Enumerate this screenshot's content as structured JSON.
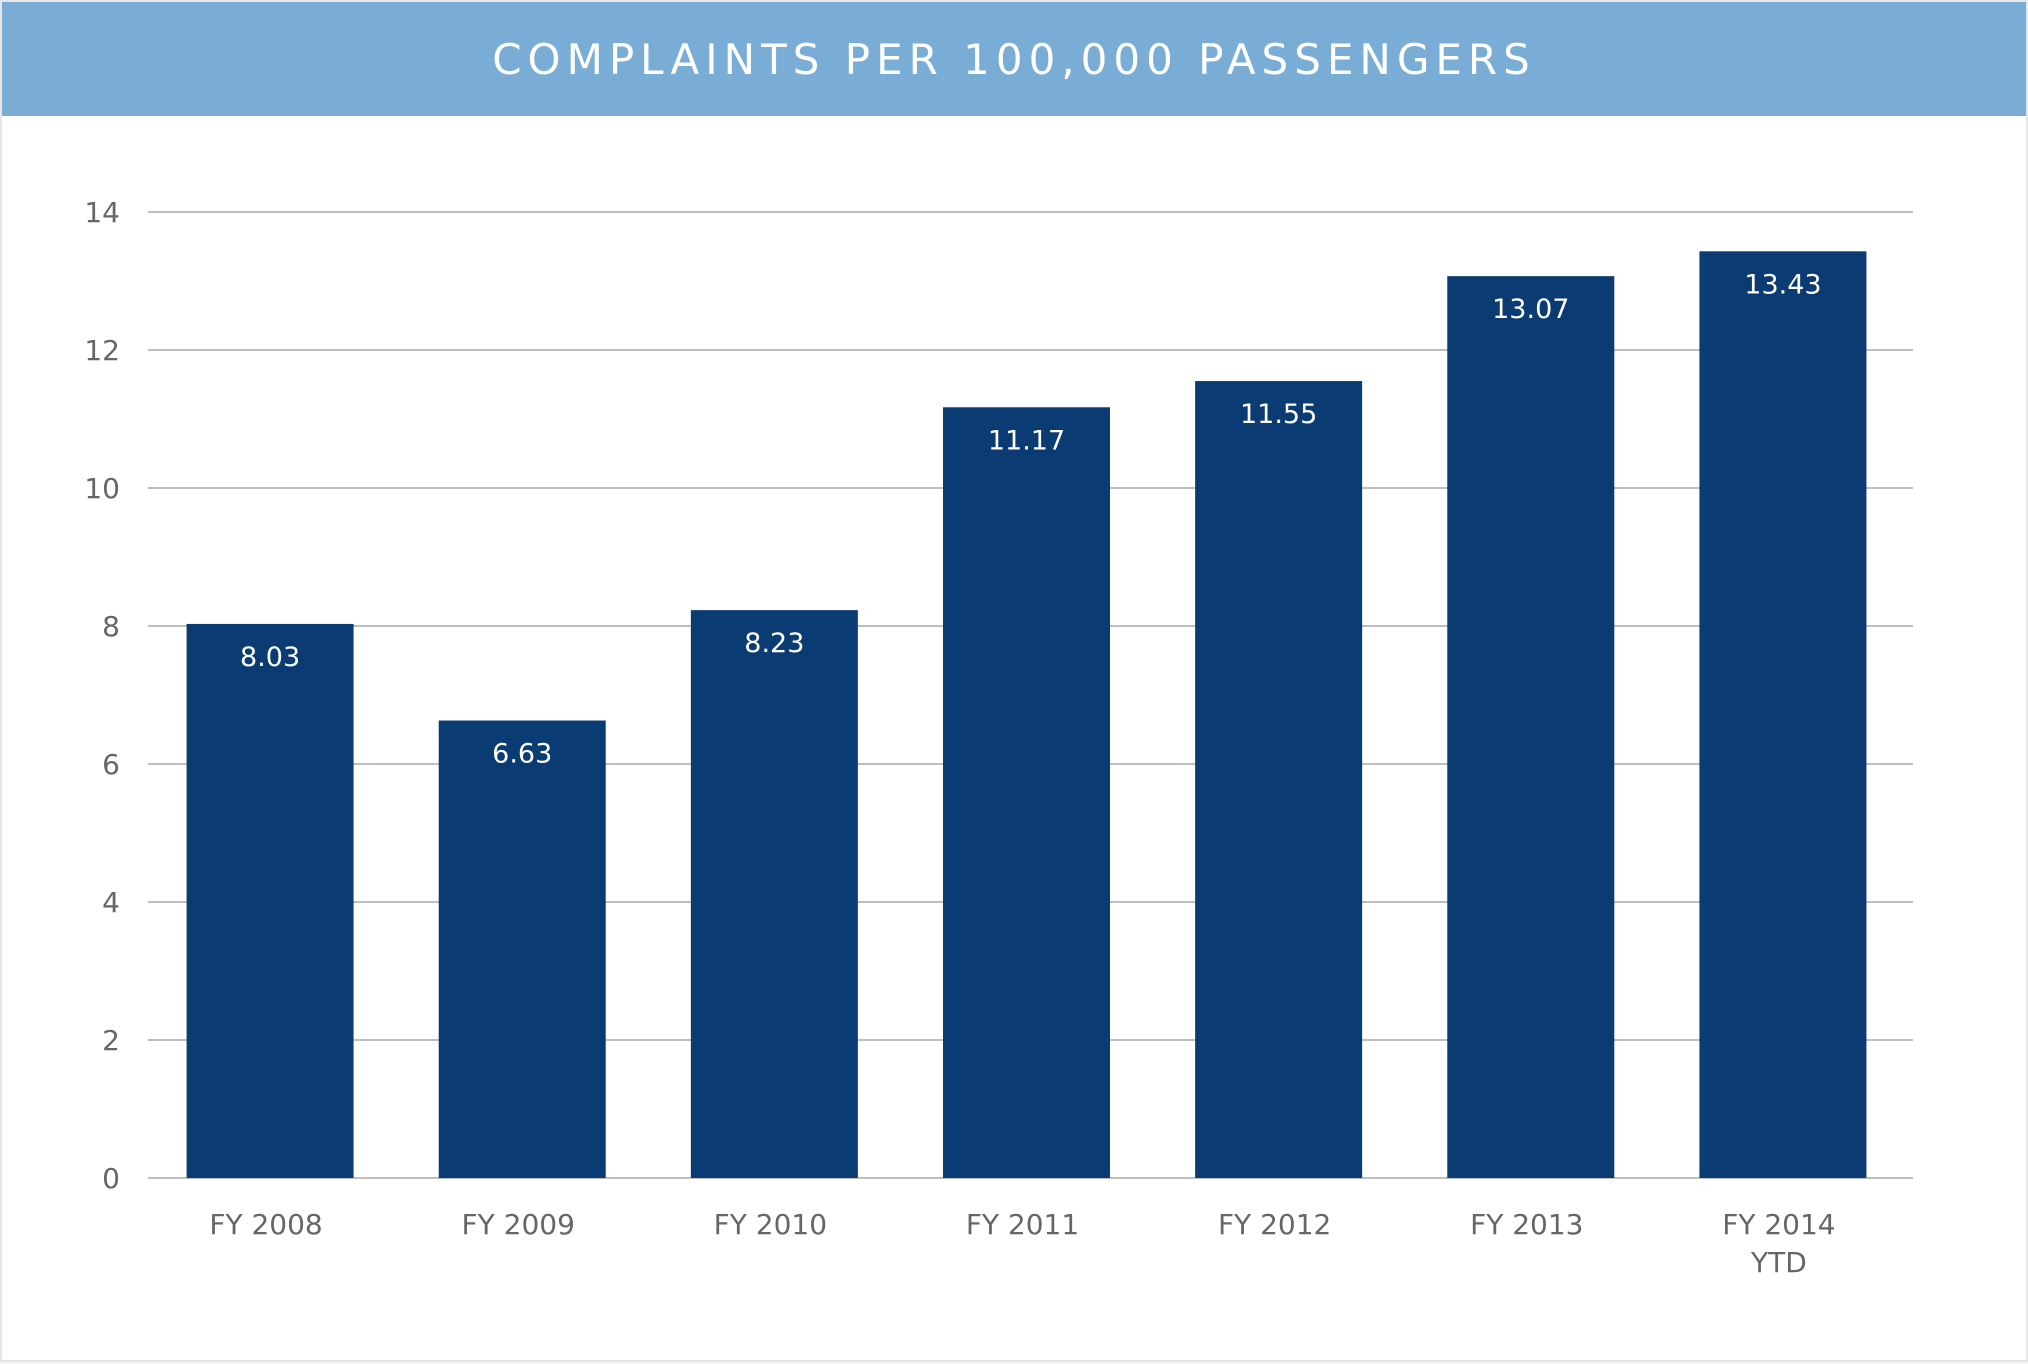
{
  "chart_data": {
    "type": "bar",
    "title": "COMPLAINTS PER 100,000 PASSENGERS",
    "xlabel": "",
    "ylabel": "",
    "ylim": [
      0,
      14
    ],
    "yticks": [
      0,
      2,
      4,
      6,
      8,
      10,
      12,
      14
    ],
    "grid": true,
    "categories": [
      [
        "FY 2008"
      ],
      [
        "FY 2009"
      ],
      [
        "FY 2010"
      ],
      [
        "FY 2011"
      ],
      [
        "FY 2012"
      ],
      [
        "FY 2013"
      ],
      [
        "FY 2014",
        "YTD"
      ]
    ],
    "values": [
      8.03,
      6.63,
      8.23,
      11.17,
      11.55,
      13.07,
      13.43
    ],
    "value_labels": [
      "8.03",
      "6.63",
      "8.23",
      "11.17",
      "11.55",
      "13.07",
      "13.43"
    ],
    "colors": {
      "bar": "#0b3b73",
      "title_bar": "#7aadd6",
      "gridline": "#bfbfbf",
      "axis_text": "#666666",
      "bar_label": "#ffffff"
    }
  }
}
